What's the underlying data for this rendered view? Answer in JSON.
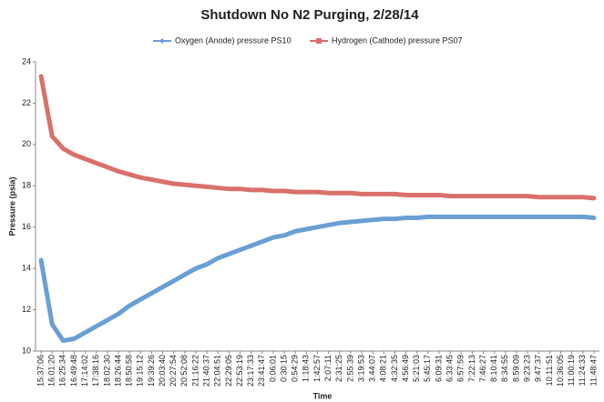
{
  "chart_data": {
    "type": "line",
    "title": "Shutdown No N2 Purging, 2/28/14",
    "xlabel": "Time",
    "ylabel": "Pressure (psia)",
    "categories": [
      "15:37:06",
      "16:01:20",
      "16:25:34",
      "16:49:48",
      "17:14:02",
      "17:38:16",
      "18:02:30",
      "18:26:44",
      "18:50:58",
      "19:15:12",
      "19:39:26",
      "20:03:40",
      "20:27:54",
      "20:52:08",
      "21:16:22",
      "21:40:37",
      "22:04:51",
      "22:29:05",
      "22:53:19",
      "23:17:33",
      "23:41:47",
      "0:06:01",
      "0:30:15",
      "0:54:29",
      "1:18:43",
      "1:42:57",
      "2:07:11",
      "2:31:25",
      "2:55:39",
      "3:19:53",
      "3:44:07",
      "4:08:21",
      "4:32:35",
      "4:56:49",
      "5:21:03",
      "5:45:17",
      "6:09:31",
      "6:33:45",
      "6:57:59",
      "7:22:13",
      "7:46:27",
      "8:10:41",
      "8:34:55",
      "8:59:09",
      "9:23:23",
      "9:47:37",
      "10:11:51",
      "10:36:05",
      "11:00:19",
      "11:24:33",
      "11:48:47"
    ],
    "series": [
      {
        "name": "Oxygen (Anode) pressure PS10",
        "color": "#6a9fd4",
        "values": [
          14.4,
          11.3,
          10.5,
          10.6,
          10.9,
          11.2,
          11.5,
          11.8,
          12.2,
          12.5,
          12.8,
          13.1,
          13.4,
          13.7,
          14.0,
          14.2,
          14.5,
          14.7,
          14.9,
          15.1,
          15.3,
          15.5,
          15.6,
          15.8,
          15.9,
          16.0,
          16.1,
          16.2,
          16.25,
          16.3,
          16.35,
          16.4,
          16.4,
          16.45,
          16.45,
          16.5,
          16.5,
          16.5,
          16.5,
          16.5,
          16.5,
          16.5,
          16.5,
          16.5,
          16.5,
          16.5,
          16.5,
          16.5,
          16.5,
          16.5,
          16.45
        ]
      },
      {
        "name": "Hydrogen (Cathode) pressure PS07",
        "color": "#d9706a",
        "values": [
          23.3,
          20.4,
          19.8,
          19.5,
          19.3,
          19.1,
          18.9,
          18.7,
          18.55,
          18.4,
          18.3,
          18.2,
          18.1,
          18.05,
          18.0,
          17.95,
          17.9,
          17.85,
          17.85,
          17.8,
          17.8,
          17.75,
          17.75,
          17.7,
          17.7,
          17.7,
          17.65,
          17.65,
          17.65,
          17.6,
          17.6,
          17.6,
          17.6,
          17.55,
          17.55,
          17.55,
          17.55,
          17.5,
          17.5,
          17.5,
          17.5,
          17.5,
          17.5,
          17.5,
          17.5,
          17.45,
          17.45,
          17.45,
          17.45,
          17.45,
          17.4
        ]
      }
    ],
    "ylim": [
      10,
      24
    ],
    "yticks": [
      10,
      12,
      14,
      16,
      18,
      20,
      22,
      24
    ],
    "grid": false,
    "legend": "top"
  }
}
